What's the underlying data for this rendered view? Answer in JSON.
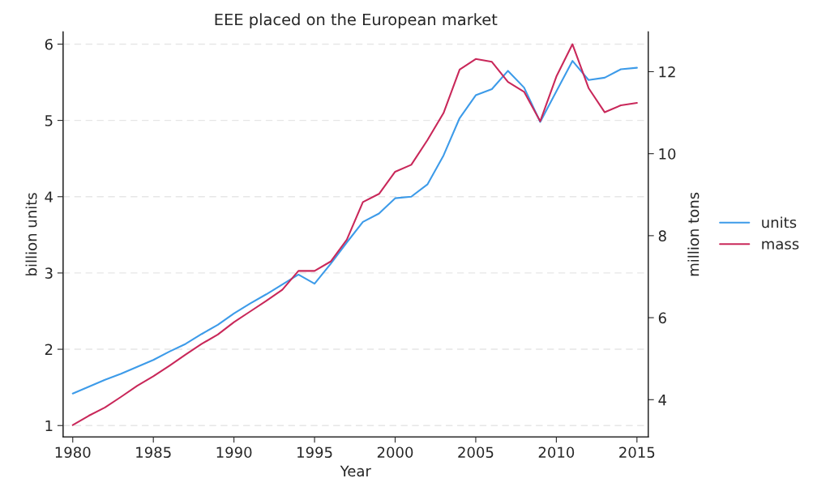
{
  "chart_data": {
    "type": "line",
    "title": "EEE placed on the European market",
    "xlabel": "Year",
    "ylabel": "billion units",
    "y2label": "million tons",
    "x": [
      1980,
      1981,
      1982,
      1983,
      1984,
      1985,
      1986,
      1987,
      1988,
      1989,
      1990,
      1991,
      1992,
      1993,
      1994,
      1995,
      1996,
      1997,
      1998,
      1999,
      2000,
      2001,
      2002,
      2003,
      2004,
      2005,
      2006,
      2007,
      2008,
      2009,
      2010,
      2011,
      2012,
      2013,
      2014,
      2015
    ],
    "series": [
      {
        "name": "units",
        "color": "#3d9be9",
        "values": [
          1.42,
          1.51,
          1.6,
          1.68,
          1.77,
          1.86,
          1.97,
          2.07,
          2.2,
          2.32,
          2.47,
          2.6,
          2.72,
          2.85,
          2.98,
          2.86,
          3.12,
          3.4,
          3.67,
          3.78,
          3.98,
          4.0,
          4.16,
          4.54,
          5.03,
          5.33,
          5.41,
          5.65,
          5.43,
          4.98,
          5.38,
          5.78,
          5.53,
          5.56,
          5.67,
          5.69
        ]
      },
      {
        "name": "mass",
        "color": "#c9285a",
        "axis": "y2",
        "values": [
          3.38,
          3.61,
          3.81,
          4.07,
          4.34,
          4.57,
          4.83,
          5.1,
          5.36,
          5.59,
          5.89,
          6.15,
          6.41,
          6.68,
          7.14,
          7.14,
          7.37,
          7.9,
          8.82,
          9.02,
          9.56,
          9.73,
          10.33,
          10.99,
          12.05,
          12.31,
          12.24,
          11.75,
          11.51,
          10.79,
          11.88,
          12.67,
          11.6,
          11.01,
          11.18,
          11.24
        ]
      }
    ],
    "xlim": [
      1979.4,
      2015.7
    ],
    "xticks": [
      1980,
      1985,
      1990,
      1995,
      2000,
      2005,
      2010,
      2015
    ],
    "ylim": [
      0.85,
      6.16
    ],
    "yticks": [
      1,
      2,
      3,
      4,
      5,
      6
    ],
    "y2lim": [
      3.09,
      12.97
    ],
    "y2ticks": [
      4,
      6,
      8,
      10,
      12
    ],
    "grid": "y",
    "legend": "right",
    "marker": "none",
    "line_style": "solid"
  }
}
